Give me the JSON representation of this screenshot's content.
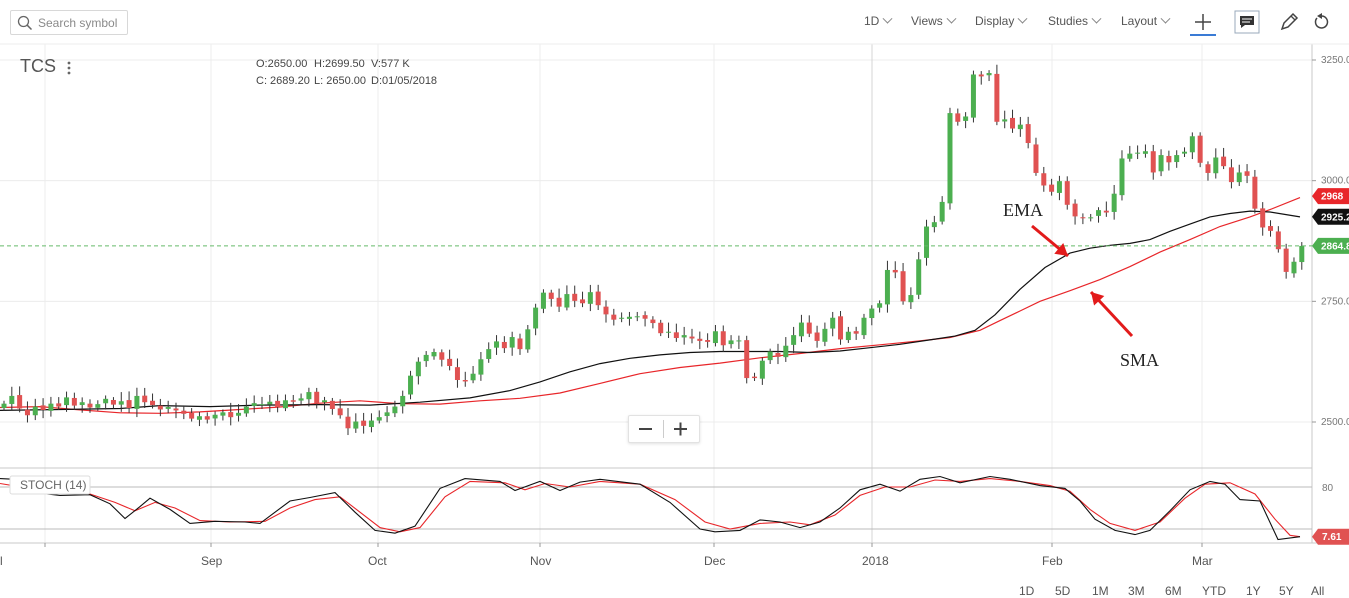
{
  "toolbar": {
    "search_placeholder": "Search symbol",
    "interval": "1D",
    "menus": [
      "Views",
      "Display",
      "Studies",
      "Layout"
    ]
  },
  "symbol": "TCS",
  "ohlc": {
    "open": "O:2650.00",
    "high": "H:2699.50",
    "volume": "V:577 K",
    "close": "C: 2689.20",
    "low": "L: 2650.00",
    "date": "D:01/05/2018"
  },
  "annotations": {
    "ema": "EMA",
    "sma": "SMA"
  },
  "range_buttons": [
    "1D",
    "5D",
    "1M",
    "3M",
    "6M",
    "YTD",
    "1Y",
    "5Y",
    "All"
  ],
  "colors": {
    "up": "#4caf50",
    "down": "#e05252",
    "ema": "#111111",
    "sma": "#e8262a",
    "last_price": "#4caf50",
    "arrow": "#e21b1b"
  },
  "icons": [
    "search-icon",
    "crosshair-icon",
    "comment-icon",
    "pencil-icon",
    "reset-icon",
    "kebab-icon",
    "zoom-out-icon",
    "zoom-in-icon"
  ],
  "chart_data": {
    "type": "candlestick",
    "ylim": [
      2400,
      3275
    ],
    "price_ticks": [
      "3250.0",
      "3000.0",
      "2750.0",
      "2500.0"
    ],
    "x_labels": [
      "l",
      "Sep",
      "Oct",
      "Nov",
      "Dec",
      "2018",
      "Feb",
      "Mar"
    ],
    "price_labels": {
      "sma": "2968",
      "ema": "2925.2",
      "last": "2864.8"
    },
    "stoch_label": "STOCH (14)",
    "stoch_tick": "80",
    "stoch_value_label": "7.61",
    "last_price": 2864.8,
    "closes": [
      2538,
      2554,
      2528,
      2514,
      2532,
      2525,
      2538,
      2532,
      2551,
      2534,
      2541,
      2530,
      2537,
      2548,
      2536,
      2543,
      2529,
      2554,
      2541,
      2535,
      2526,
      2531,
      2524,
      2517,
      2507,
      2512,
      2505,
      2515,
      2520,
      2510,
      2519,
      2532,
      2539,
      2537,
      2542,
      2531,
      2545,
      2542,
      2549,
      2562,
      2538,
      2545,
      2527,
      2514,
      2487,
      2501,
      2492,
      2503,
      2510,
      2520,
      2532,
      2554,
      2596,
      2625,
      2639,
      2645,
      2629,
      2616,
      2587,
      2584,
      2600,
      2630,
      2651,
      2667,
      2653,
      2676,
      2651,
      2692,
      2737,
      2768,
      2755,
      2739,
      2765,
      2751,
      2746,
      2769,
      2742,
      2723,
      2712,
      2716,
      2718,
      2719,
      2714,
      2705,
      2684,
      2687,
      2674,
      2680,
      2673,
      2668,
      2666,
      2688,
      2659,
      2669,
      2669,
      2591,
      2591,
      2627,
      2646,
      2635,
      2658,
      2680,
      2706,
      2683,
      2668,
      2693,
      2716,
      2671,
      2687,
      2683,
      2716,
      2735,
      2746,
      2815,
      2810,
      2750,
      2763,
      2837,
      2905,
      2914,
      2956,
      3140,
      3122,
      3133,
      3220,
      3216,
      3223,
      3122,
      3127,
      3108,
      3116,
      3078,
      3016,
      2990,
      2977,
      2999,
      2950,
      2926,
      2922,
      2924,
      2939,
      2934,
      2973,
      3046,
      3056,
      3058,
      3061,
      3017,
      3053,
      3038,
      3053,
      3060,
      3092,
      3037,
      3016,
      3048,
      3030,
      2997,
      3017,
      3010,
      2942,
      2903,
      2896,
      2858,
      2811,
      2832,
      2864.8
    ],
    "ema_curve": [
      [
        0,
        2524
      ],
      [
        60,
        2526
      ],
      [
        120,
        2528
      ],
      [
        160,
        2534
      ],
      [
        210,
        2532
      ],
      [
        260,
        2535
      ],
      [
        320,
        2536
      ],
      [
        370,
        2535
      ],
      [
        420,
        2541
      ],
      [
        470,
        2550
      ],
      [
        510,
        2565
      ],
      [
        540,
        2583
      ],
      [
        570,
        2604
      ],
      [
        600,
        2621
      ],
      [
        630,
        2632
      ],
      [
        660,
        2639
      ],
      [
        690,
        2644
      ],
      [
        720,
        2646
      ],
      [
        750,
        2646
      ],
      [
        780,
        2646
      ],
      [
        810,
        2644
      ],
      [
        840,
        2647
      ],
      [
        870,
        2654
      ],
      [
        900,
        2661
      ],
      [
        930,
        2670
      ],
      [
        955,
        2678
      ],
      [
        975,
        2690
      ],
      [
        995,
        2722
      ],
      [
        1020,
        2775
      ],
      [
        1045,
        2820
      ],
      [
        1070,
        2850
      ],
      [
        1090,
        2860
      ],
      [
        1110,
        2866
      ],
      [
        1130,
        2870
      ],
      [
        1150,
        2878
      ],
      [
        1170,
        2895
      ],
      [
        1190,
        2910
      ],
      [
        1210,
        2925
      ],
      [
        1230,
        2932
      ],
      [
        1250,
        2937
      ],
      [
        1270,
        2935
      ],
      [
        1300,
        2925
      ]
    ],
    "sma_curve": [
      [
        0,
        2530
      ],
      [
        40,
        2532
      ],
      [
        80,
        2525
      ],
      [
        120,
        2519
      ],
      [
        160,
        2518
      ],
      [
        200,
        2521
      ],
      [
        240,
        2526
      ],
      [
        280,
        2531
      ],
      [
        320,
        2539
      ],
      [
        360,
        2544
      ],
      [
        400,
        2538
      ],
      [
        440,
        2537
      ],
      [
        480,
        2544
      ],
      [
        520,
        2549
      ],
      [
        560,
        2560
      ],
      [
        600,
        2580
      ],
      [
        640,
        2600
      ],
      [
        680,
        2613
      ],
      [
        720,
        2622
      ],
      [
        760,
        2633
      ],
      [
        800,
        2642
      ],
      [
        840,
        2652
      ],
      [
        880,
        2660
      ],
      [
        920,
        2668
      ],
      [
        950,
        2675
      ],
      [
        980,
        2690
      ],
      [
        1000,
        2710
      ],
      [
        1020,
        2730
      ],
      [
        1040,
        2750
      ],
      [
        1070,
        2772
      ],
      [
        1100,
        2795
      ],
      [
        1130,
        2822
      ],
      [
        1160,
        2852
      ],
      [
        1190,
        2878
      ],
      [
        1220,
        2905
      ],
      [
        1250,
        2925
      ],
      [
        1270,
        2940
      ],
      [
        1300,
        2965
      ]
    ],
    "stoch_k": [
      [
        0,
        92
      ],
      [
        15,
        91
      ],
      [
        35,
        72
      ],
      [
        60,
        68
      ],
      [
        90,
        69
      ],
      [
        110,
        56
      ],
      [
        125,
        35
      ],
      [
        140,
        52
      ],
      [
        150,
        64
      ],
      [
        170,
        48
      ],
      [
        190,
        28
      ],
      [
        215,
        31
      ],
      [
        245,
        30
      ],
      [
        260,
        28
      ],
      [
        290,
        60
      ],
      [
        310,
        65
      ],
      [
        335,
        72
      ],
      [
        355,
        44
      ],
      [
        375,
        18
      ],
      [
        395,
        14
      ],
      [
        415,
        24
      ],
      [
        440,
        78
      ],
      [
        465,
        92
      ],
      [
        500,
        88
      ],
      [
        515,
        75
      ],
      [
        540,
        88
      ],
      [
        560,
        75
      ],
      [
        580,
        87
      ],
      [
        600,
        91
      ],
      [
        640,
        84
      ],
      [
        670,
        58
      ],
      [
        700,
        20
      ],
      [
        715,
        16
      ],
      [
        740,
        18
      ],
      [
        760,
        33
      ],
      [
        780,
        30
      ],
      [
        800,
        22
      ],
      [
        820,
        30
      ],
      [
        840,
        50
      ],
      [
        860,
        76
      ],
      [
        880,
        84
      ],
      [
        900,
        74
      ],
      [
        920,
        91
      ],
      [
        940,
        95
      ],
      [
        960,
        86
      ],
      [
        990,
        95
      ],
      [
        1010,
        91
      ],
      [
        1040,
        82
      ],
      [
        1065,
        78
      ],
      [
        1080,
        60
      ],
      [
        1095,
        34
      ],
      [
        1115,
        18
      ],
      [
        1135,
        12
      ],
      [
        1150,
        18
      ],
      [
        1170,
        46
      ],
      [
        1190,
        76
      ],
      [
        1210,
        88
      ],
      [
        1225,
        84
      ],
      [
        1240,
        62
      ],
      [
        1260,
        60
      ],
      [
        1278,
        5
      ],
      [
        1300,
        9
      ]
    ],
    "stoch_d": [
      [
        0,
        85
      ],
      [
        30,
        78
      ],
      [
        60,
        72
      ],
      [
        90,
        70
      ],
      [
        115,
        58
      ],
      [
        135,
        46
      ],
      [
        155,
        58
      ],
      [
        175,
        50
      ],
      [
        200,
        32
      ],
      [
        230,
        30
      ],
      [
        265,
        31
      ],
      [
        290,
        50
      ],
      [
        315,
        62
      ],
      [
        340,
        66
      ],
      [
        360,
        44
      ],
      [
        380,
        22
      ],
      [
        400,
        16
      ],
      [
        420,
        22
      ],
      [
        445,
        66
      ],
      [
        470,
        88
      ],
      [
        505,
        86
      ],
      [
        525,
        76
      ],
      [
        545,
        85
      ],
      [
        570,
        80
      ],
      [
        600,
        88
      ],
      [
        640,
        84
      ],
      [
        675,
        62
      ],
      [
        705,
        30
      ],
      [
        730,
        20
      ],
      [
        760,
        28
      ],
      [
        790,
        30
      ],
      [
        810,
        26
      ],
      [
        835,
        40
      ],
      [
        860,
        68
      ],
      [
        885,
        80
      ],
      [
        910,
        80
      ],
      [
        935,
        90
      ],
      [
        960,
        88
      ],
      [
        990,
        92
      ],
      [
        1020,
        88
      ],
      [
        1050,
        82
      ],
      [
        1070,
        74
      ],
      [
        1090,
        48
      ],
      [
        1110,
        28
      ],
      [
        1135,
        18
      ],
      [
        1160,
        30
      ],
      [
        1185,
        64
      ],
      [
        1205,
        84
      ],
      [
        1230,
        86
      ],
      [
        1255,
        70
      ],
      [
        1275,
        34
      ],
      [
        1290,
        11
      ],
      [
        1300,
        9
      ]
    ]
  }
}
